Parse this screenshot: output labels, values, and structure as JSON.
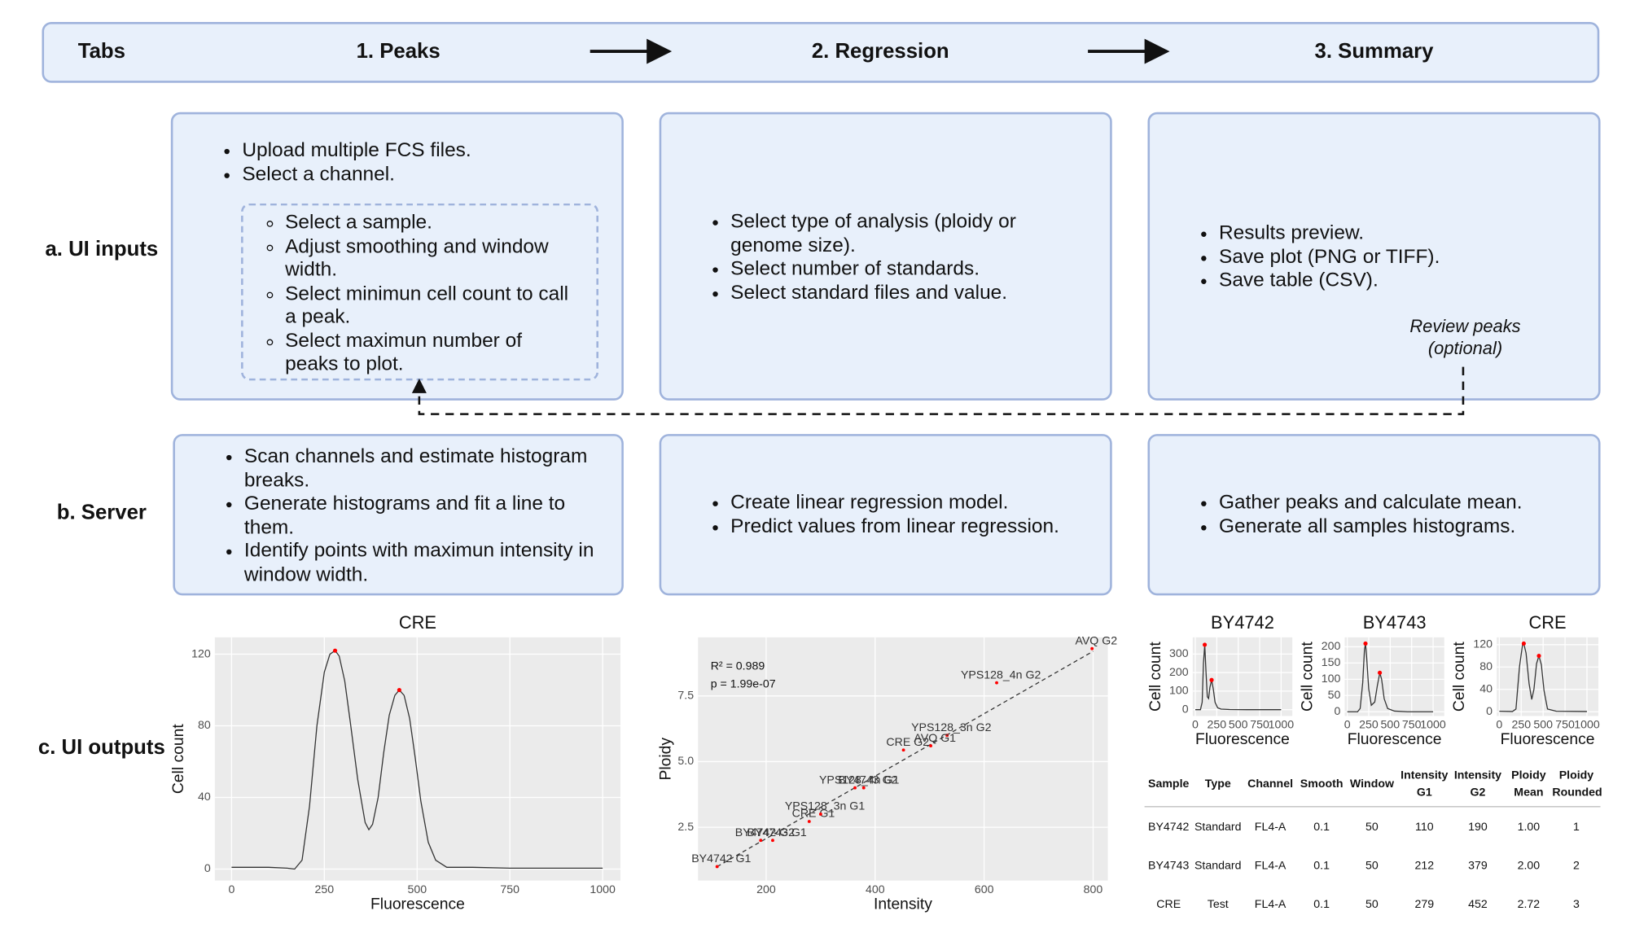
{
  "tabs": {
    "label": "Tabs",
    "items": [
      "1. Peaks",
      "2. Regression",
      "3. Summary"
    ]
  },
  "rows": [
    "a. UI inputs",
    "b. Server",
    "c. UI outputs"
  ],
  "inputs": {
    "peaks": {
      "bullets": [
        "Upload multiple FCS files.",
        "Select a channel."
      ],
      "sub_bullets": [
        "Select a sample.",
        "Adjust smoothing and window width.",
        "Select minimun cell count to call a peak.",
        "Select maximun number of peaks to plot."
      ]
    },
    "regression": {
      "bullets": [
        "Select type of analysis (ploidy or genome size).",
        "Select number of standards.",
        "Select standard files and value."
      ]
    },
    "summary": {
      "bullets": [
        "Results preview.",
        "Save plot (PNG or TIFF).",
        "Save table (CSV)."
      ],
      "note": [
        "Review peaks",
        "(optional)"
      ]
    }
  },
  "server": {
    "peaks": [
      "Scan channels and estimate histogram breaks.",
      "Generate histograms and fit a line to them.",
      "Identify points with maximun intensity in window width."
    ],
    "regression": [
      "Create linear regression model.",
      "Predict values from linear regression."
    ],
    "summary": [
      "Gather peaks and calculate mean.",
      "Generate all samples histograms."
    ]
  },
  "outputs": {
    "peaks_chart": {
      "type": "line",
      "title": "CRE",
      "x_label": "Fluorescence",
      "y_label": "Cell count",
      "xlim": [
        -45,
        1048
      ],
      "ylim": [
        -6.4,
        129.4
      ],
      "xticks": [
        0,
        250,
        500,
        750,
        1000
      ],
      "yticks": [
        0,
        40,
        80,
        120
      ],
      "grid": true,
      "curve": {
        "color": "#333333",
        "x": [
          0,
          50,
          100,
          150,
          170,
          190,
          210,
          230,
          250,
          265,
          279,
          290,
          305,
          320,
          340,
          360,
          370,
          380,
          395,
          410,
          425,
          440,
          452,
          465,
          480,
          495,
          510,
          530,
          550,
          580,
          650,
          750,
          850,
          1000
        ],
        "values": [
          1,
          1,
          1,
          0.5,
          0,
          5,
          35,
          80,
          110,
          120,
          122,
          119,
          105,
          82,
          50,
          26,
          22,
          25,
          40,
          65,
          86,
          97,
          100,
          97,
          84,
          62,
          38,
          15,
          5,
          1,
          1,
          0.5,
          0.5,
          0.5
        ]
      },
      "peaks": {
        "color": "#ff0000",
        "x": [
          279,
          452
        ],
        "values": [
          122,
          100
        ]
      }
    },
    "regression_chart": {
      "type": "scatter",
      "x_label": "Intensity",
      "y_label": "Ploidy",
      "xlim": [
        75,
        827
      ],
      "ylim": [
        0.47,
        9.73
      ],
      "xticks": [
        200,
        400,
        600,
        800
      ],
      "yticks": [
        2.5,
        {
          "value": 5,
          "label": "5.0"
        },
        7.5
      ],
      "grid": true,
      "annotations": [
        "R² = 0.989",
        "p = 1.99e-07"
      ],
      "fit": {
        "color": "#333333",
        "x": [
          110,
          800
        ],
        "values": [
          1,
          9.2
        ]
      },
      "points": {
        "color": "#ff0000",
        "labels": [
          "BY4742 G1",
          "BY4742 G2",
          "BY4743 G1",
          "BY4743 G2",
          "CRE G1",
          "CRE G2",
          "YPS128_3n G1",
          "YPS128_3n G2",
          "YPS128_4n G1",
          "YPS128_4n G2",
          "AVQ G1",
          "AVQ G2"
        ],
        "x": [
          110,
          190,
          212,
          379,
          279,
          452,
          300,
          532,
          363,
          623,
          502,
          798
        ],
        "values": [
          1,
          2,
          2,
          4,
          2.72,
          5.44,
          3,
          6,
          4,
          8,
          5.6,
          9.3
        ]
      }
    },
    "summary_charts": [
      {
        "type": "line",
        "title": "BY4742",
        "x_label": "Fluorescence",
        "y_label": "Cell count",
        "xlim": [
          -30,
          1130
        ],
        "ylim": [
          -34,
          390
        ],
        "xticks": [
          0,
          250,
          500,
          750,
          1000
        ],
        "yticks": [
          0,
          100,
          200,
          300
        ],
        "grid": true,
        "curve": {
          "color": "#333333",
          "x": [
            0,
            60,
            80,
            95,
            110,
            125,
            140,
            155,
            170,
            190,
            210,
            230,
            260,
            300,
            400,
            600,
            800,
            1000
          ],
          "values": [
            0,
            0,
            40,
            250,
            350,
            200,
            70,
            60,
            120,
            160,
            110,
            40,
            10,
            3,
            1,
            0,
            0,
            0
          ]
        },
        "peaks": {
          "color": "#ff0000",
          "x": [
            110,
            190
          ],
          "values": [
            350,
            160
          ]
        }
      },
      {
        "type": "line",
        "title": "BY4743",
        "x_label": "Fluorescence",
        "y_label": "Cell count",
        "xlim": [
          -30,
          1130
        ],
        "ylim": [
          -13,
          229
        ],
        "xticks": [
          0,
          250,
          500,
          750,
          1000
        ],
        "yticks": [
          0,
          50,
          100,
          150,
          200
        ],
        "grid": true,
        "curve": {
          "color": "#333333",
          "x": [
            0,
            120,
            150,
            180,
            200,
            212,
            225,
            250,
            280,
            320,
            350,
            379,
            400,
            430,
            470,
            550,
            700,
            1000
          ],
          "values": [
            0,
            0,
            10,
            90,
            190,
            210,
            170,
            70,
            20,
            30,
            80,
            120,
            100,
            40,
            10,
            2,
            0,
            0
          ]
        },
        "peaks": {
          "color": "#ff0000",
          "x": [
            212,
            379
          ],
          "values": [
            210,
            120
          ]
        }
      },
      {
        "type": "line",
        "title": "CRE",
        "x_label": "Fluorescence",
        "y_label": "Cell count",
        "xlim": [
          -30,
          1130
        ],
        "ylim": [
          -7.5,
          133
        ],
        "xticks": [
          0,
          250,
          500,
          750,
          1000
        ],
        "yticks": [
          0,
          40,
          80,
          120
        ],
        "grid": true,
        "curve": {
          "color": "#333333",
          "x": [
            0,
            150,
            190,
            230,
            265,
            279,
            305,
            340,
            370,
            395,
            425,
            452,
            480,
            510,
            550,
            650,
            1000
          ],
          "values": [
            1,
            0.5,
            5,
            80,
            120,
            122,
            105,
            50,
            22,
            40,
            86,
            100,
            84,
            38,
            5,
            1,
            0.5
          ]
        },
        "peaks": {
          "color": "#ff0000",
          "x": [
            279,
            452
          ],
          "values": [
            122,
            100
          ]
        }
      }
    ],
    "summary_table": {
      "columns": [
        "Sample",
        "Type",
        "Channel",
        "Smooth",
        "Window",
        "Intensity G1",
        "Intensity G2",
        "Ploidy Mean",
        "Ploidy Rounded"
      ],
      "rows": [
        [
          "BY4742",
          "Standard",
          "FL4-A",
          "0.1",
          "50",
          "110",
          "190",
          "1.00",
          "1"
        ],
        [
          "BY4743",
          "Standard",
          "FL4-A",
          "0.1",
          "50",
          "212",
          "379",
          "2.00",
          "2"
        ],
        [
          "CRE",
          "Test",
          "FL4-A",
          "0.1",
          "50",
          "279",
          "452",
          "2.72",
          "3"
        ]
      ]
    }
  }
}
